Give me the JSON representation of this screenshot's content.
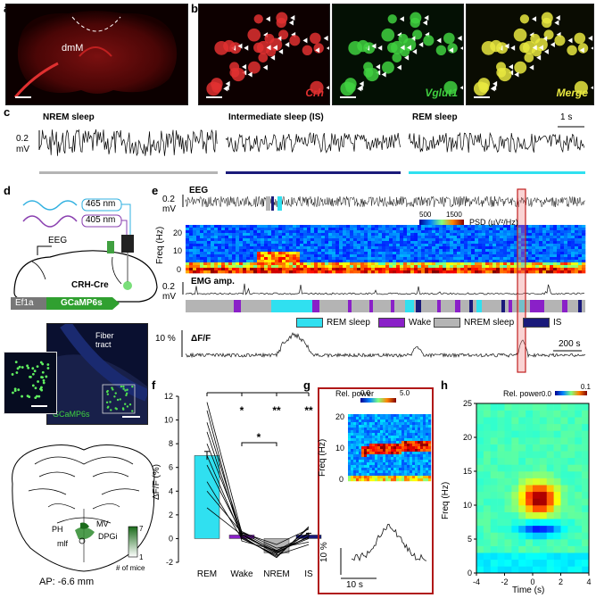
{
  "panel_letters": {
    "a": "a",
    "b": "b",
    "c": "c",
    "d": "d",
    "e": "e",
    "f": "f",
    "g": "g",
    "h": "h"
  },
  "panel_a": {
    "region_label": "dmM"
  },
  "panel_b": {
    "stains": [
      "Crh",
      "Vglut1",
      "Merge"
    ],
    "colors": [
      "#e03030",
      "#40d040",
      "#e8e840"
    ]
  },
  "panel_c": {
    "states": [
      "NREM sleep",
      "Intermediate sleep (IS)",
      "REM sleep"
    ],
    "bar_colors": [
      "#b4b4b4",
      "#1a1a7a",
      "#30e0f0"
    ],
    "scale_y_value": "0.2",
    "scale_y_unit": "mV",
    "scale_x": "1 s"
  },
  "panel_d": {
    "laser1": "465 nm",
    "laser2": "405 nm",
    "eeg": "EEG",
    "mouse_line": "CRH-Cre",
    "construct": [
      "Ef1a",
      "GCaMP6s"
    ],
    "fiber_label": "Fiber\ntract",
    "histo_label": "GCaMP6s",
    "atlas_labels": [
      "MV",
      "PH",
      "DPGi",
      "mlf"
    ],
    "count_legend": {
      "max": "7",
      "min": "1",
      "label": "# of mice"
    },
    "ap_label": "AP: -6.6 mm"
  },
  "panel_e": {
    "eeg_title": "EEG",
    "eeg_scale_value": "0.2",
    "eeg_scale_unit": "mV",
    "psd_label": "PSD (µV²/Hz)",
    "psd_ticks": [
      "500",
      "1500"
    ],
    "freq_label": "Freq (Hz)",
    "freq_ticks": [
      "20",
      "10",
      "0"
    ],
    "emg_title": "EMG amp.",
    "emg_scale_value": "0.2",
    "emg_scale_unit": "mV",
    "legend": [
      {
        "label": "REM sleep",
        "color": "#30e0f0"
      },
      {
        "label": "Wake",
        "color": "#8a20c8"
      },
      {
        "label": "NREM sleep",
        "color": "#b4b4b4"
      },
      {
        "label": "IS",
        "color": "#1a1a7a"
      }
    ],
    "dff_title": "ΔF/F",
    "dff_scale": "10 %",
    "time_scale": "200 s"
  },
  "chart_data": [
    {
      "type": "bar",
      "categories": [
        "REM",
        "Wake",
        "NREM",
        "IS"
      ],
      "values": [
        7.0,
        0.3,
        -1.2,
        0.3
      ],
      "errors": [
        0.35,
        0.15,
        0.15,
        0.15
      ],
      "colors": [
        "#30e0f0",
        "#8a20c8",
        "#b4b4b4",
        "#1a1a7a"
      ],
      "ylabel": "ΔF/F (%)",
      "ylim": [
        -2,
        12
      ],
      "yticks": [
        -2,
        0,
        2,
        4,
        6,
        8,
        10,
        12
      ],
      "significance": [
        {
          "label": "*",
          "pair": [
            "REM",
            "Wake"
          ]
        },
        {
          "label": "**",
          "pair": [
            "REM",
            "NREM"
          ]
        },
        {
          "label": "**",
          "pair": [
            "REM",
            "IS"
          ]
        },
        {
          "label": "*",
          "pair": [
            "Wake",
            "NREM"
          ]
        }
      ],
      "individual_mice": [
        [
          11.5,
          0.5,
          -0.5,
          0.8
        ],
        [
          10.8,
          -0.2,
          -1.0,
          0.1
        ],
        [
          9.8,
          0.3,
          -1.3,
          0.5
        ],
        [
          9.0,
          0.1,
          -1.5,
          0.9
        ],
        [
          8.0,
          0.6,
          -0.8,
          -0.3
        ],
        [
          7.0,
          0.2,
          -1.6,
          1.0
        ],
        [
          6.2,
          0.4,
          -1.2,
          0.2
        ],
        [
          4.8,
          0.0,
          -1.4,
          -0.5
        ],
        [
          4.0,
          0.5,
          -1.0,
          0.4
        ],
        [
          2.6,
          0.3,
          -1.1,
          0.0
        ]
      ]
    },
    {
      "type": "heatmap",
      "ylabel": "Freq (Hz)",
      "xlabel": "Time (s)",
      "xlim": [
        -4,
        4
      ],
      "ylim": [
        0,
        25
      ],
      "xticks": [
        -4,
        -2,
        0,
        2,
        4
      ],
      "yticks": [
        0,
        5,
        10,
        15,
        20,
        25
      ],
      "colorbar_label": "Rel. power",
      "colorbar_ticks": [
        0.0,
        0.1
      ]
    }
  ],
  "panel_g": {
    "colorbar_label": "Rel. power",
    "colorbar_ticks": [
      "0.0",
      "5.0"
    ],
    "freq_label": "Freq (Hz)",
    "freq_ticks": [
      "20",
      "10",
      "0"
    ],
    "dff_scale": "10 %",
    "time_scale": "10 s"
  }
}
